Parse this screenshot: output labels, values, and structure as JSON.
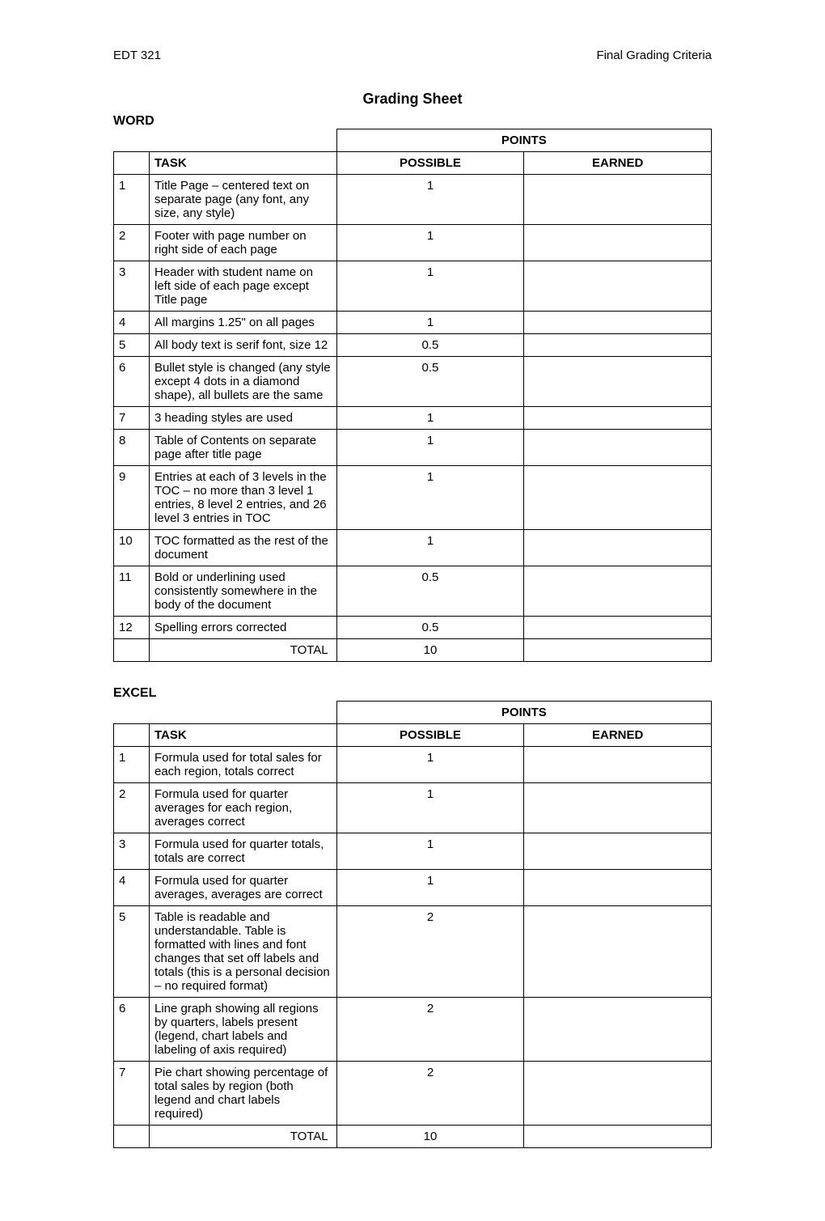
{
  "header": {
    "left": "EDT 321",
    "right": "Final Grading Criteria"
  },
  "page_title": "Grading Sheet",
  "labels": {
    "points": "POINTS",
    "task": "TASK",
    "possible": "POSSIBLE",
    "earned": "EARNED",
    "total": "TOTAL"
  },
  "sections": [
    {
      "title": "WORD",
      "rows": [
        {
          "num": "1",
          "task": "Title Page – centered text on separate page (any font, any size, any style)",
          "possible": "1",
          "earned": ""
        },
        {
          "num": "2",
          "task": "Footer with page number on right side of each page",
          "possible": "1",
          "earned": ""
        },
        {
          "num": "3",
          "task": "Header with student name on left side of each page except Title page",
          "possible": "1",
          "earned": ""
        },
        {
          "num": "4",
          "task": "All margins 1.25\" on all pages",
          "possible": "1",
          "earned": ""
        },
        {
          "num": "5",
          "task": "All body text is serif font, size 12",
          "possible": "0.5",
          "earned": ""
        },
        {
          "num": "6",
          "task": "Bullet style is changed (any style except 4 dots in a diamond shape), all bullets are the same",
          "possible": "0.5",
          "earned": ""
        },
        {
          "num": "7",
          "task": "3 heading styles are used",
          "possible": "1",
          "earned": ""
        },
        {
          "num": "8",
          "task": "Table of Contents on separate page after title page",
          "possible": "1",
          "earned": ""
        },
        {
          "num": "9",
          "task": "Entries at each of 3 levels in the TOC – no more than 3 level 1 entries, 8 level 2 entries, and 26 level 3 entries in TOC",
          "possible": "1",
          "earned": ""
        },
        {
          "num": "10",
          "task": "TOC formatted as the rest of the document",
          "possible": "1",
          "earned": ""
        },
        {
          "num": "11",
          "task": "Bold or underlining used consistently somewhere in the body of the document",
          "possible": "0.5",
          "earned": ""
        },
        {
          "num": "12",
          "task": "Spelling errors corrected",
          "possible": "0.5",
          "earned": ""
        }
      ],
      "total_possible": "10",
      "total_earned": ""
    },
    {
      "title": "EXCEL",
      "rows": [
        {
          "num": "1",
          "task": "Formula used for total sales for each region, totals correct",
          "possible": "1",
          "earned": ""
        },
        {
          "num": "2",
          "task": "Formula used for quarter averages for each region, averages correct",
          "possible": "1",
          "earned": ""
        },
        {
          "num": "3",
          "task": "Formula used for quarter totals, totals are correct",
          "possible": "1",
          "earned": ""
        },
        {
          "num": "4",
          "task": "Formula used for quarter averages, averages are correct",
          "possible": "1",
          "earned": ""
        },
        {
          "num": "5",
          "task": "Table is readable and understandable.  Table is formatted with lines and font changes that set off labels and totals (this is a personal decision – no required format)",
          "possible": "2",
          "earned": ""
        },
        {
          "num": "6",
          "task": "Line graph showing all regions by quarters, labels present (legend, chart labels and labeling of axis required)",
          "possible": "2",
          "earned": ""
        },
        {
          "num": "7",
          "task": "Pie chart showing percentage of total sales by region (both legend and chart labels required)",
          "possible": "2",
          "earned": ""
        }
      ],
      "total_possible": "10",
      "total_earned": ""
    }
  ]
}
